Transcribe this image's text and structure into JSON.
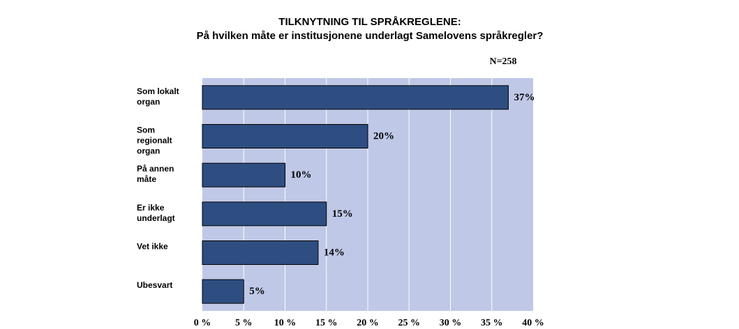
{
  "chart_data": {
    "type": "bar",
    "orientation": "horizontal",
    "title": "TILKNYTNING TIL SPRÅKREGLENE:",
    "subtitle": "På hvilken måte er institusjonene underlagt Samelovens språkregler?",
    "annotation": "N=258",
    "categories": [
      [
        "Som lokalt",
        "organ"
      ],
      [
        "Som",
        "regionalt",
        "organ"
      ],
      [
        "På annen",
        "måte"
      ],
      [
        "Er ikke",
        "underlagt"
      ],
      [
        "Vet ikke"
      ],
      [
        "Ubesvart"
      ]
    ],
    "values": [
      37,
      20,
      10,
      15,
      14,
      5
    ],
    "value_labels": [
      "37%",
      "20%",
      "10%",
      "15%",
      "14%",
      "5%"
    ],
    "xlim": [
      0,
      40
    ],
    "xticks": [
      0,
      5,
      10,
      15,
      20,
      25,
      30,
      35,
      40
    ],
    "xtick_labels": [
      "0 %",
      "5 %",
      "10 %",
      "15 %",
      "20 %",
      "25 %",
      "30 %",
      "35 %",
      "40 %"
    ],
    "grid": true,
    "colors": {
      "plot_background": "#bfc8e6",
      "bar_fill": "#2e4e82",
      "bar_stroke": "#000000",
      "grid": "#ffffff"
    }
  }
}
